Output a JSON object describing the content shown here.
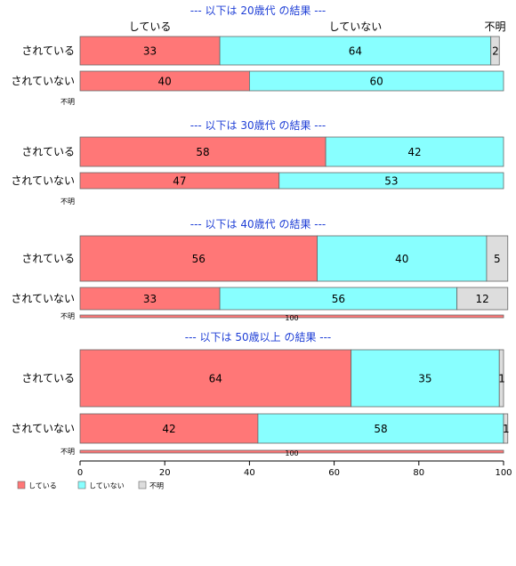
{
  "chart_data": {
    "type": "bar",
    "orientation": "horizontal",
    "stacked": true,
    "column_headers": [
      "している",
      "していない",
      "不明"
    ],
    "xlim": [
      0,
      100
    ],
    "x_ticks": [
      "0",
      "20",
      "40",
      "60",
      "80",
      "100"
    ],
    "legend_position": "bottom-left",
    "series_colors": [
      "#FF7777",
      "#88FFFF",
      "#DDDDDD"
    ],
    "groups": [
      {
        "title": "--- 以下は 20歳代 の結果 ---",
        "rows": [
          {
            "category": "されている",
            "values": [
              33,
              64,
              2
            ]
          },
          {
            "category": "されていない",
            "values": [
              40,
              60,
              0
            ]
          },
          {
            "category": "不明",
            "values": [
              0,
              0,
              0
            ]
          }
        ]
      },
      {
        "title": "--- 以下は 30歳代 の結果 ---",
        "rows": [
          {
            "category": "されている",
            "values": [
              58,
              42,
              0
            ]
          },
          {
            "category": "されていない",
            "values": [
              47,
              53,
              0
            ]
          },
          {
            "category": "不明",
            "values": [
              0,
              0,
              0
            ]
          }
        ]
      },
      {
        "title": "--- 以下は 40歳代 の結果 ---",
        "rows": [
          {
            "category": "されている",
            "values": [
              56,
              40,
              5
            ]
          },
          {
            "category": "されていない",
            "values": [
              33,
              56,
              12
            ]
          },
          {
            "category": "不明",
            "values": [
              100,
              0,
              0
            ]
          }
        ]
      },
      {
        "title": "--- 以下は 50歳以上 の結果 ---",
        "rows": [
          {
            "category": "されている",
            "values": [
              64,
              35,
              1
            ]
          },
          {
            "category": "されていない",
            "values": [
              42,
              58,
              1
            ]
          },
          {
            "category": "不明",
            "values": [
              100,
              0,
              0
            ]
          }
        ]
      }
    ],
    "series": [
      {
        "name": "している"
      },
      {
        "name": "していない"
      },
      {
        "name": "不明"
      }
    ]
  }
}
